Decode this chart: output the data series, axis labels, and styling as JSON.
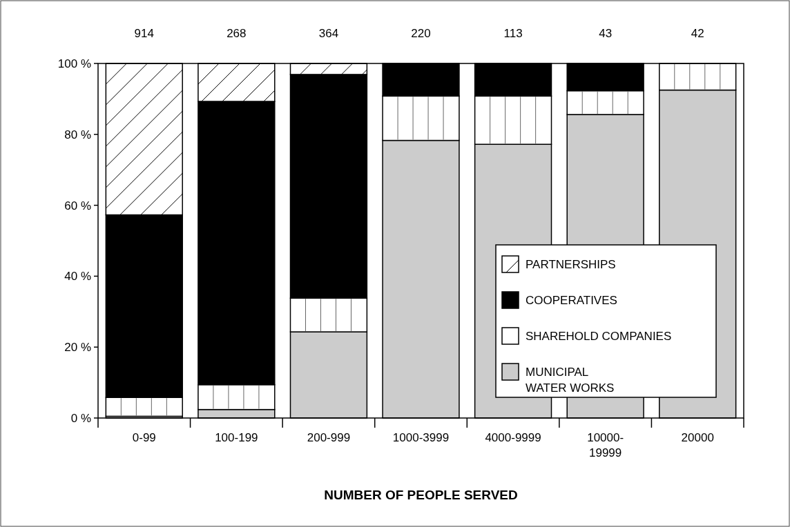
{
  "chart_data": {
    "type": "bar",
    "stacked": true,
    "xlabel": "NUMBER OF PEOPLE SERVED",
    "categories": [
      "0-99",
      "100-199",
      "200-999",
      "1000-3999",
      "4000-9999",
      "10000-\n19999",
      "20000"
    ],
    "series": [
      {
        "name": "MUNICIPAL\nWATER WORKS",
        "color": "#cccccc",
        "values": [
          0.5,
          2.4,
          24.3,
          78.3,
          77.2,
          85.6,
          92.5
        ]
      },
      {
        "name": "SHAREHOLD COMPANIES",
        "color": "#ffffff",
        "values": [
          5.3,
          7.0,
          9.5,
          12.5,
          13.6,
          6.7,
          7.5
        ]
      },
      {
        "name": "COOPERATIVES",
        "color": "#000000",
        "values": [
          51.5,
          79.9,
          63.1,
          9.2,
          9.2,
          7.7,
          0
        ]
      },
      {
        "name": "PARTNERSHIPS",
        "color": "#ffffff",
        "values": [
          42.7,
          10.7,
          3.1,
          0,
          0,
          0,
          0
        ]
      }
    ],
    "annotations": [
      "914",
      "268",
      "364",
      "220",
      "113",
      "43",
      "42"
    ],
    "ylim": [
      0,
      100
    ],
    "yticks": [
      {
        "value": 0,
        "label": "0 %"
      },
      {
        "value": 20,
        "label": "20 %"
      },
      {
        "value": 40,
        "label": "40 %"
      },
      {
        "value": 60,
        "label": "60 %"
      },
      {
        "value": 80,
        "label": "80 %"
      },
      {
        "value": 100,
        "label": "100 %"
      }
    ],
    "grid": false,
    "legend": "bottom right"
  }
}
